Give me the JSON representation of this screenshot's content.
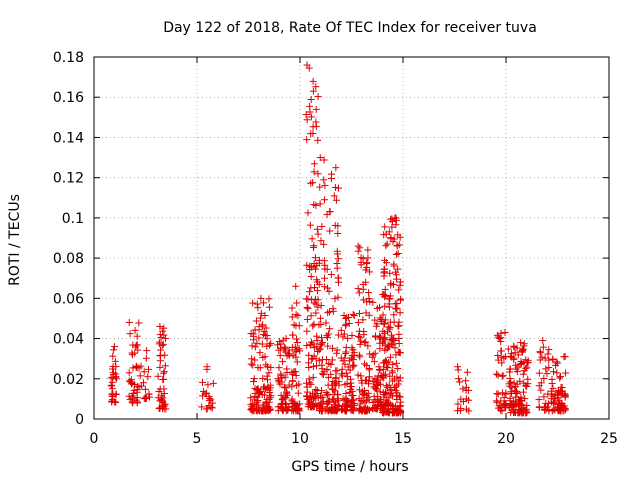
{
  "chart_data": {
    "type": "scatter",
    "title": "Day 122 of 2018, Rate Of TEC Index for receiver tuva",
    "xlabel": "GPS time / hours",
    "ylabel": "ROTI / TECUs",
    "xlim": [
      0,
      25
    ],
    "ylim": [
      0,
      0.18
    ],
    "xticks": [
      0,
      5,
      10,
      15,
      20,
      25
    ],
    "yticks": [
      0,
      0.02,
      0.04,
      0.06,
      0.08,
      0.1,
      0.12,
      0.14,
      0.16,
      0.18
    ],
    "xtick_labels": [
      "0",
      "5",
      "10",
      "15",
      "20",
      "25"
    ],
    "ytick_labels": [
      "0",
      "0.02",
      "0.04",
      "0.06",
      "0.08",
      "0.1",
      "0.12",
      "0.14",
      "0.16",
      "0.18"
    ],
    "grid": true,
    "marker": "+",
    "color": "#e00000",
    "clusters": [
      {
        "x": [
          0.8,
          1.1
        ],
        "y": [
          0.008,
          0.036
        ],
        "n": 30
      },
      {
        "x": [
          1.7,
          2.3
        ],
        "y": [
          0.008,
          0.048
        ],
        "n": 45
      },
      {
        "x": [
          2.4,
          2.7
        ],
        "y": [
          0.01,
          0.034
        ],
        "n": 15
      },
      {
        "x": [
          3.1,
          3.5
        ],
        "y": [
          0.005,
          0.046
        ],
        "n": 45
      },
      {
        "x": [
          5.2,
          5.8
        ],
        "y": [
          0.005,
          0.026
        ],
        "n": 20
      },
      {
        "x": [
          7.6,
          8.6
        ],
        "y": [
          0.004,
          0.06
        ],
        "n": 130
      },
      {
        "x": [
          8.9,
          9.5
        ],
        "y": [
          0.004,
          0.04
        ],
        "n": 60
      },
      {
        "x": [
          9.6,
          10.0
        ],
        "y": [
          0.004,
          0.066
        ],
        "n": 60
      },
      {
        "x": [
          10.3,
          10.9
        ],
        "y": [
          0.006,
          0.176
        ],
        "n": 130
      },
      {
        "x": [
          10.9,
          11.9
        ],
        "y": [
          0.004,
          0.13
        ],
        "n": 160
      },
      {
        "x": [
          12.0,
          12.7
        ],
        "y": [
          0.004,
          0.052
        ],
        "n": 90
      },
      {
        "x": [
          12.8,
          13.4
        ],
        "y": [
          0.004,
          0.086
        ],
        "n": 100
      },
      {
        "x": [
          13.5,
          14.0
        ],
        "y": [
          0.005,
          0.058
        ],
        "n": 70
      },
      {
        "x": [
          14.0,
          14.9
        ],
        "y": [
          0.003,
          0.1
        ],
        "n": 220
      },
      {
        "x": [
          17.6,
          18.2
        ],
        "y": [
          0.004,
          0.026
        ],
        "n": 20
      },
      {
        "x": [
          19.5,
          20.0
        ],
        "y": [
          0.004,
          0.043
        ],
        "n": 40
      },
      {
        "x": [
          20.1,
          21.1
        ],
        "y": [
          0.003,
          0.038
        ],
        "n": 110
      },
      {
        "x": [
          21.6,
          22.1
        ],
        "y": [
          0.004,
          0.039
        ],
        "n": 35
      },
      {
        "x": [
          22.2,
          22.9
        ],
        "y": [
          0.004,
          0.031
        ],
        "n": 70
      }
    ]
  }
}
